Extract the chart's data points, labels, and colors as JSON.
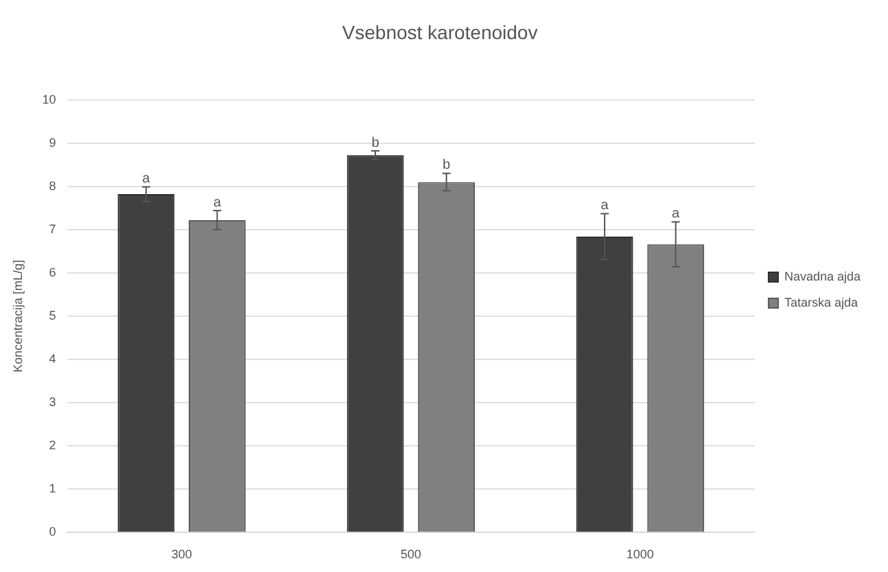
{
  "chart_data": {
    "type": "bar",
    "title": "Vsebnost karotenoidov",
    "ylabel": "Koncentracija [mL/g]",
    "categories": [
      "300",
      "500",
      "1000"
    ],
    "series": [
      {
        "name": "Navadna ajda",
        "color": "#404040",
        "values": [
          7.82,
          8.72,
          6.84
        ],
        "errors": [
          0.17,
          0.1,
          0.53
        ]
      },
      {
        "name": "Tatarska ajda",
        "color": "#808080",
        "values": [
          7.22,
          8.1,
          6.66
        ],
        "errors": [
          0.22,
          0.2,
          0.52
        ]
      }
    ],
    "ylim": [
      0,
      10
    ],
    "yticks": [
      0,
      1,
      2,
      3,
      4,
      5,
      6,
      7,
      8,
      9,
      10
    ],
    "grid": "y",
    "legend": "right",
    "annotations": [
      "a",
      "a",
      "b",
      "b",
      "a",
      "a"
    ]
  }
}
